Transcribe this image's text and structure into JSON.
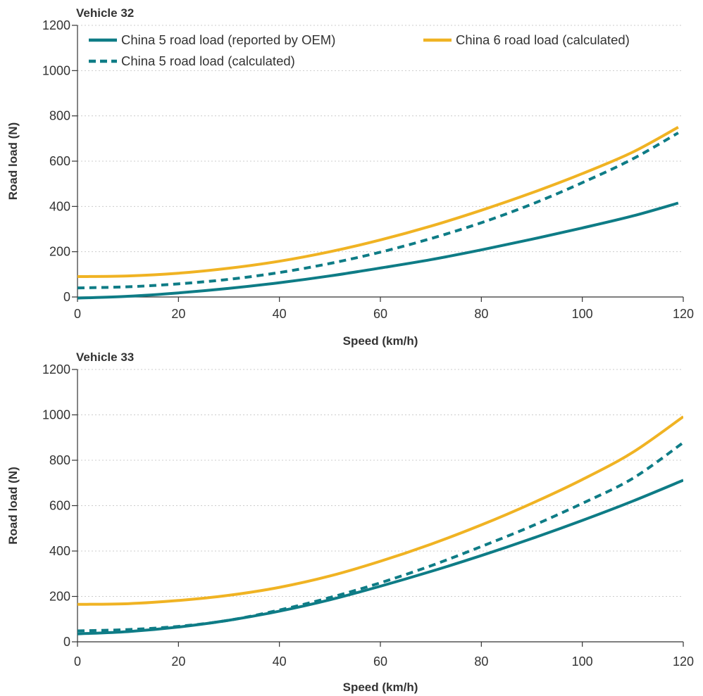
{
  "colors": {
    "teal": "#0e7c86",
    "orange": "#f0b323",
    "grid": "#cccccc",
    "axis": "#333333",
    "text": "#333333"
  },
  "legend": {
    "items": [
      {
        "label": "China 5 road load (reported by OEM)",
        "color": "#0e7c86",
        "style": "solid"
      },
      {
        "label": "China 6 road load (calculated)",
        "color": "#f0b323",
        "style": "solid"
      },
      {
        "label": "China 5 road load (calculated)",
        "color": "#0e7c86",
        "style": "dashed"
      }
    ]
  },
  "chart_data": [
    {
      "type": "line",
      "title": "Vehicle 32",
      "xlabel": "Speed (km/h)",
      "ylabel": "Road load (N)",
      "xlim": [
        0,
        120
      ],
      "ylim": [
        0,
        1200
      ],
      "xticks": [
        0,
        20,
        40,
        60,
        80,
        100,
        120
      ],
      "yticks": [
        0,
        200,
        400,
        600,
        800,
        1000,
        1200
      ],
      "grid": "horizontal dotted",
      "legend": "top-left",
      "x": [
        0,
        10,
        20,
        30,
        40,
        50,
        60,
        70,
        80,
        90,
        100,
        110,
        119
      ],
      "series": [
        {
          "name": "China 5 road load (reported by OEM)",
          "color": "#0e7c86",
          "style": "solid",
          "values": [
            -5,
            3,
            18,
            38,
            63,
            93,
            128,
            165,
            208,
            255,
            305,
            358,
            415
          ]
        },
        {
          "name": "China 6 road load (calculated)",
          "color": "#f0b323",
          "style": "solid",
          "values": [
            90,
            93,
            105,
            127,
            158,
            200,
            252,
            313,
            383,
            460,
            545,
            640,
            750
          ]
        },
        {
          "name": "China 5 road load (calculated)",
          "color": "#0e7c86",
          "style": "dashed",
          "values": [
            40,
            45,
            58,
            78,
            108,
            148,
            198,
            258,
            328,
            410,
            505,
            610,
            725
          ]
        }
      ]
    },
    {
      "type": "line",
      "title": "Vehicle 33",
      "xlabel": "Speed (km/h)",
      "ylabel": "Road load (N)",
      "xlim": [
        0,
        120
      ],
      "ylim": [
        0,
        1200
      ],
      "xticks": [
        0,
        20,
        40,
        60,
        80,
        100,
        120
      ],
      "yticks": [
        0,
        200,
        400,
        600,
        800,
        1000,
        1200
      ],
      "grid": "horizontal dotted",
      "legend": "none",
      "x": [
        0,
        10,
        20,
        30,
        40,
        50,
        60,
        70,
        80,
        90,
        100,
        110,
        120
      ],
      "series": [
        {
          "name": "China 5 road load (reported by OEM)",
          "color": "#0e7c86",
          "style": "solid",
          "values": [
            35,
            45,
            65,
            95,
            135,
            185,
            245,
            310,
            380,
            455,
            535,
            620,
            712
          ]
        },
        {
          "name": "China 6 road load (calculated)",
          "color": "#f0b323",
          "style": "solid",
          "values": [
            165,
            168,
            182,
            205,
            240,
            290,
            355,
            430,
            515,
            610,
            715,
            835,
            992
          ]
        },
        {
          "name": "China 5 road load (calculated)",
          "color": "#0e7c86",
          "style": "dashed",
          "values": [
            48,
            54,
            68,
            95,
            140,
            195,
            260,
            335,
            420,
            510,
            610,
            720,
            878
          ]
        }
      ]
    }
  ]
}
